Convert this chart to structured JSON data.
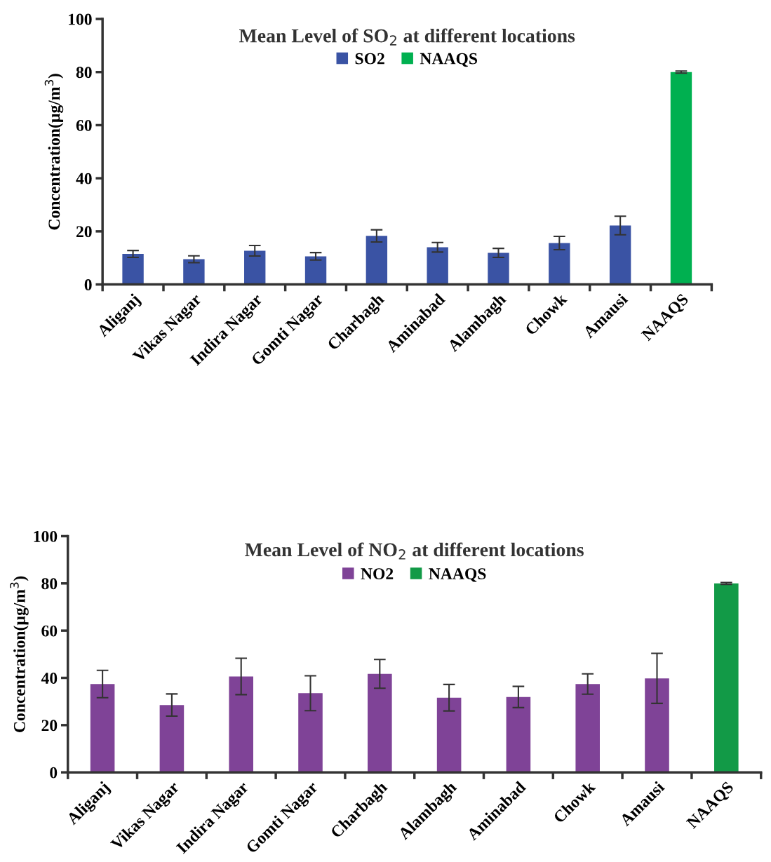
{
  "chart_data": [
    {
      "type": "bar",
      "title": "Mean Level of SO$_{2}$ at different locations",
      "ylabel": "Concentration(µg/m$^{3}$)",
      "categories": [
        "Aliganj",
        "Vikas Nagar",
        "Indira Nagar",
        "Gomti Nagar",
        "Charbagh",
        "Aminabad",
        "Alambagh",
        "Chowk",
        "Amausi",
        "NAAQS"
      ],
      "series": [
        {
          "name": "SO2",
          "color": "#3a53a4",
          "values": [
            11.5,
            9.5,
            12.7,
            10.6,
            18.3,
            14.0,
            11.9,
            15.6,
            22.2,
            null
          ],
          "errors": [
            1.3,
            1.3,
            2.0,
            1.4,
            2.3,
            1.8,
            1.7,
            2.5,
            3.5,
            null
          ]
        },
        {
          "name": "NAAQS",
          "color": "#00b050",
          "values": [
            null,
            null,
            null,
            null,
            null,
            null,
            null,
            null,
            null,
            80
          ],
          "errors": [
            null,
            null,
            null,
            null,
            null,
            null,
            null,
            null,
            null,
            0.4
          ]
        }
      ],
      "ylim": [
        0,
        100
      ],
      "yticks": [
        0,
        20,
        40,
        60,
        80,
        100
      ],
      "grid": false,
      "legend": "top"
    },
    {
      "type": "bar",
      "title": "Mean Level of NO$_{2}$ at different locations",
      "ylabel": "Concentration(µg/m$^{3}$)",
      "categories": [
        "Aliganj",
        "Vikas Nagar",
        "Indira Nagar",
        "Gomti Nagar",
        "Charbagh",
        "Alambagh",
        "Aminabad",
        "Chowk",
        "Amausi",
        "NAAQS"
      ],
      "series": [
        {
          "name": "NO2",
          "color": "#7f4397",
          "values": [
            37.4,
            28.5,
            40.6,
            33.5,
            41.7,
            31.6,
            31.9,
            37.4,
            39.8,
            null
          ],
          "errors": [
            5.8,
            4.7,
            7.7,
            7.4,
            6.1,
            5.6,
            4.5,
            4.3,
            10.6,
            null
          ]
        },
        {
          "name": "NAAQS",
          "color": "#129a47",
          "values": [
            null,
            null,
            null,
            null,
            null,
            null,
            null,
            null,
            null,
            80
          ],
          "errors": [
            null,
            null,
            null,
            null,
            null,
            null,
            null,
            null,
            null,
            0.4
          ]
        }
      ],
      "ylim": [
        0,
        100
      ],
      "yticks": [
        0,
        20,
        40,
        60,
        80,
        100
      ],
      "grid": false,
      "legend": "top"
    }
  ]
}
